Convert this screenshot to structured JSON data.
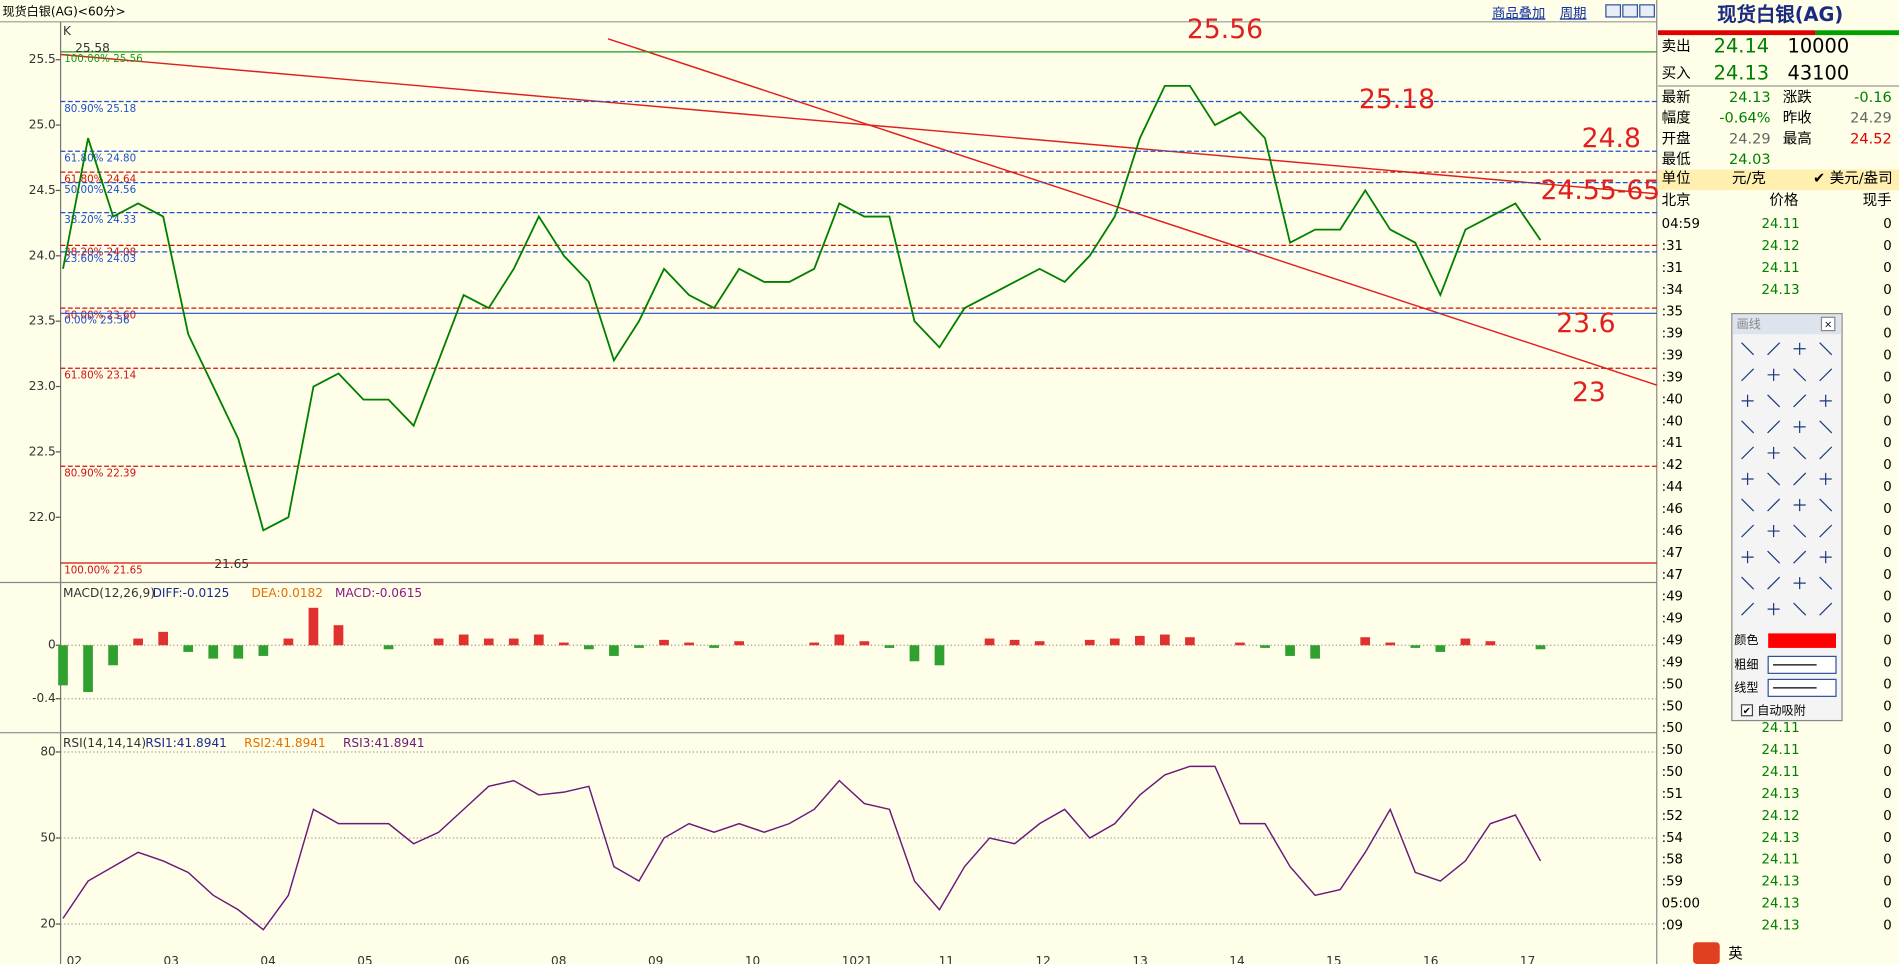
{
  "window_title": "现货白银(AG)<60分>",
  "toolbar": {
    "links": [
      "商品叠加",
      "周期"
    ]
  },
  "x_axis_labels": [
    "02",
    "03",
    "04",
    "05",
    "06",
    "08",
    "09",
    "10",
    "1021",
    "11",
    "12",
    "13",
    "14",
    "15",
    "16",
    "17"
  ],
  "chart_data": [
    {
      "type": "line",
      "label": "K",
      "color": "#008000",
      "ylim": [
        21.51,
        25.79
      ],
      "yticks": [
        {
          "value": 22,
          "label": "22.0"
        },
        22.5,
        {
          "value": 23,
          "label": "23.0"
        },
        23.5,
        {
          "value": 24,
          "label": "24.0"
        },
        24.5,
        {
          "value": 25,
          "label": "25.0"
        },
        25.5
      ],
      "values": [
        23.9,
        24.9,
        24.3,
        24.4,
        24.3,
        23.4,
        23.0,
        22.6,
        21.9,
        22.0,
        23.0,
        23.1,
        22.9,
        22.9,
        22.7,
        23.2,
        23.7,
        23.6,
        23.9,
        24.3,
        24.0,
        23.8,
        23.2,
        23.5,
        23.9,
        23.7,
        23.6,
        23.9,
        23.8,
        23.8,
        23.9,
        24.4,
        24.3,
        24.3,
        23.5,
        23.3,
        23.6,
        23.7,
        23.8,
        23.9,
        23.8,
        24.0,
        24.3,
        24.9,
        25.3,
        25.3,
        25.0,
        25.1,
        24.9,
        24.1,
        24.2,
        24.2,
        24.5,
        24.2,
        24.1,
        23.7,
        24.2,
        24.3,
        24.4,
        24.12
      ],
      "high_label": "25.58",
      "low_label": "21.65",
      "fib_levels": [
        {
          "label": "100.00% 25.56",
          "value": 25.56,
          "color": "#1a9a1a"
        },
        {
          "label": "80.90% 25.18",
          "value": 25.18,
          "color": "#1f4fd0"
        },
        {
          "label": "61.80% 24.80",
          "value": 24.8,
          "color": "#1f4fd0"
        },
        {
          "label": "61.80% 24.64",
          "value": 24.64,
          "color": "#d01010"
        },
        {
          "label": "50.00% 24.56",
          "value": 24.56,
          "color": "#1f4fd0"
        },
        {
          "label": "38.20% 24.33",
          "value": 24.33,
          "color": "#1f4fd0"
        },
        {
          "label": "38.20% 24.08",
          "value": 24.08,
          "color": "#d01010"
        },
        {
          "label": "23.60% 24.03",
          "value": 24.03,
          "color": "#1f4fd0"
        },
        {
          "label": "50.00% 23.60",
          "value": 23.6,
          "color": "#d01010"
        },
        {
          "label": "0.00% 23.56",
          "value": 23.56,
          "color": "#1f4fd0"
        },
        {
          "label": "61.80% 23.14",
          "value": 23.14,
          "color": "#d01010"
        },
        {
          "label": "80.90% 22.39",
          "value": 22.39,
          "color": "#d01010"
        },
        {
          "label": "100.00% 21.65",
          "value": 21.65,
          "color": "#d01010"
        }
      ],
      "annotations": [
        "25.56",
        "25.18",
        "24.8",
        "24.55-65",
        "23.6",
        "23"
      ]
    },
    {
      "type": "bar",
      "title": "MACD(12,26,9)",
      "legend": [
        "DIFF:-0.0125",
        "DEA:0.0182",
        "MACD:-0.0615"
      ],
      "ylim": [
        -0.645,
        0.46
      ],
      "yticks": [
        0,
        -0.4
      ],
      "values": [
        -0.3,
        -0.35,
        -0.15,
        0.05,
        0.1,
        -0.05,
        -0.1,
        -0.1,
        -0.08,
        0.05,
        0.28,
        0.15,
        0.0,
        -0.03,
        0.0,
        0.05,
        0.08,
        0.05,
        0.05,
        0.08,
        0.02,
        -0.03,
        -0.08,
        -0.02,
        0.04,
        0.02,
        -0.02,
        0.03,
        0.0,
        0.0,
        0.02,
        0.08,
        0.03,
        -0.02,
        -0.12,
        -0.15,
        0.0,
        0.05,
        0.04,
        0.03,
        0.0,
        0.04,
        0.05,
        0.07,
        0.08,
        0.06,
        0.0,
        0.02,
        -0.02,
        -0.08,
        -0.1,
        0.0,
        0.06,
        0.02,
        -0.02,
        -0.05,
        0.05,
        0.03,
        0.0,
        -0.03
      ]
    },
    {
      "type": "line",
      "title": "RSI(14,14,14)",
      "legend": [
        "RSI1:41.8941",
        "RSI2:41.8941",
        "RSI3:41.8941"
      ],
      "color": "#6a1a7a",
      "ylim": [
        8.6,
        86.3
      ],
      "yticks": [
        20,
        50,
        80
      ],
      "values": [
        22,
        35,
        40,
        45,
        42,
        38,
        30,
        25,
        18,
        30,
        60,
        55,
        55,
        55,
        48,
        52,
        60,
        68,
        70,
        65,
        66,
        68,
        40,
        35,
        50,
        55,
        52,
        55,
        52,
        55,
        60,
        70,
        62,
        60,
        35,
        25,
        40,
        50,
        48,
        55,
        60,
        50,
        55,
        65,
        72,
        75,
        75,
        55,
        55,
        40,
        30,
        32,
        45,
        60,
        38,
        35,
        42,
        55,
        58,
        42
      ]
    }
  ],
  "quote_panel": {
    "title": "现货白银(AG)",
    "bid_ask": [
      {
        "label": "卖出",
        "price": "24.14",
        "volume": "10000"
      },
      {
        "label": "买入",
        "price": "24.13",
        "volume": "43100"
      }
    ],
    "stats": [
      [
        "最新",
        "24.13",
        "涨跌",
        "-0.16"
      ],
      [
        "幅度",
        "-0.64%",
        "昨收",
        "24.29"
      ],
      [
        "开盘",
        "24.29",
        "最高",
        "24.52"
      ],
      [
        "最低",
        "24.03"
      ]
    ],
    "unit": [
      "单位",
      "元/克",
      "✔ 美元/盎司"
    ],
    "ticks_header": [
      "北京",
      "价格",
      "现手"
    ],
    "ticks": [
      [
        "04:59",
        "24.11",
        "0"
      ],
      [
        ":31",
        "24.12",
        "0"
      ],
      [
        ":31",
        "24.11",
        "0"
      ],
      [
        ":34",
        "24.13",
        "0"
      ],
      [
        ":35",
        null,
        "0"
      ],
      [
        ":39",
        null,
        "0"
      ],
      [
        ":39",
        null,
        "0"
      ],
      [
        ":39",
        null,
        "0"
      ],
      [
        ":40",
        null,
        "0"
      ],
      [
        ":40",
        null,
        "0"
      ],
      [
        ":41",
        null,
        "0"
      ],
      [
        ":42",
        null,
        "0"
      ],
      [
        ":44",
        null,
        "0"
      ],
      [
        ":46",
        null,
        "0"
      ],
      [
        ":46",
        null,
        "0"
      ],
      [
        ":47",
        null,
        "0"
      ],
      [
        ":47",
        null,
        "0"
      ],
      [
        ":49",
        null,
        "0"
      ],
      [
        ":49",
        null,
        "0"
      ],
      [
        ":49",
        null,
        "0"
      ],
      [
        ":49",
        null,
        "0"
      ],
      [
        ":50",
        null,
        "0"
      ],
      [
        ":50",
        null,
        "0"
      ],
      [
        ":50",
        "24.11",
        "0"
      ],
      [
        ":50",
        "24.11",
        "0"
      ],
      [
        ":50",
        "24.11",
        "0"
      ],
      [
        ":51",
        "24.13",
        "0"
      ],
      [
        ":52",
        "24.12",
        "0"
      ],
      [
        ":54",
        "24.13",
        "0"
      ],
      [
        ":58",
        "24.11",
        "0"
      ],
      [
        ":59",
        "24.13",
        "0"
      ],
      [
        "05:00",
        "24.13",
        "0"
      ],
      [
        ":09",
        "24.13",
        "0"
      ]
    ]
  },
  "draw_tool": {
    "title": "画线",
    "rows": [
      "颜色",
      "粗细",
      "线型"
    ],
    "checkbox": "自动吸附"
  },
  "ime": "英"
}
